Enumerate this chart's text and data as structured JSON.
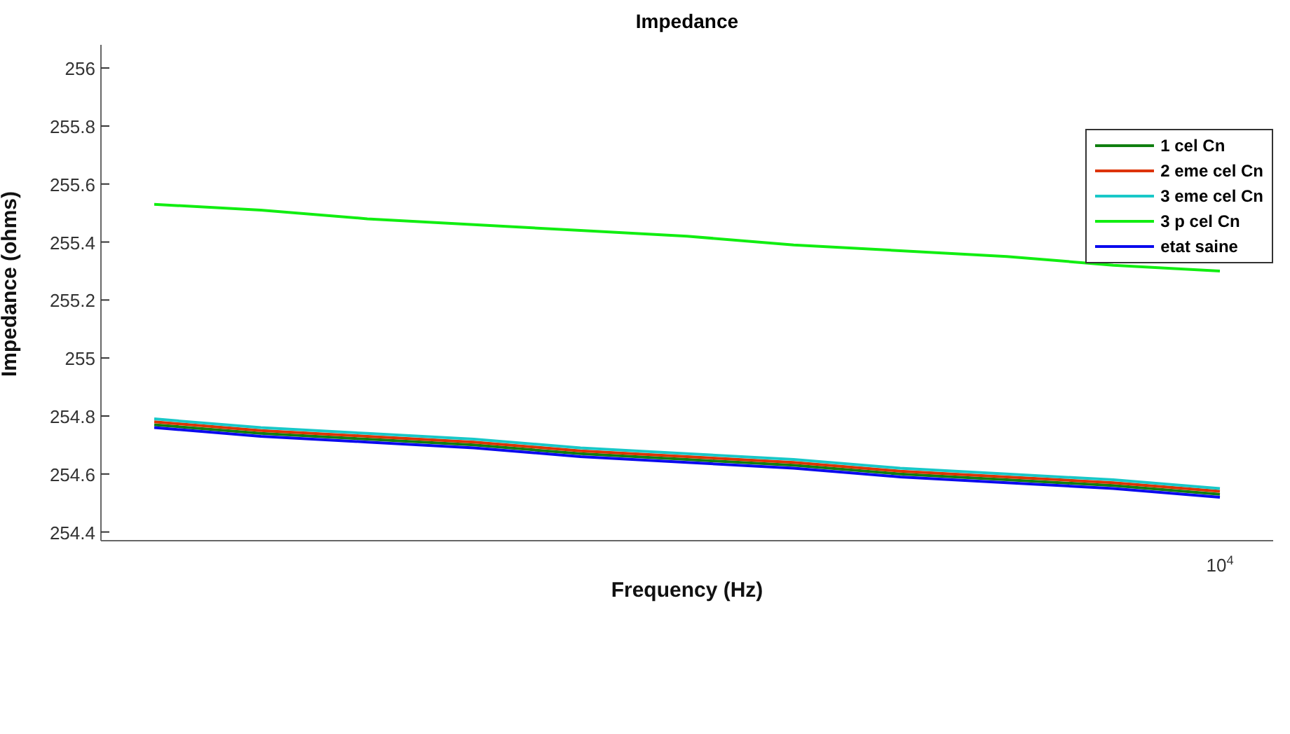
{
  "chart_data": {
    "type": "line",
    "title": "Impedance",
    "xlabel": "Frequency (Hz)",
    "ylabel": "Impedance (ohms)",
    "categories": [
      null,
      null,
      null,
      null,
      null,
      null,
      null,
      null,
      null,
      null,
      "10$^{4}$"
    ],
    "series": [
      {
        "name": "1 cel Cn",
        "color": "#107f10",
        "values": [
          254.77,
          254.74,
          254.72,
          254.7,
          254.67,
          254.65,
          254.63,
          254.6,
          254.58,
          254.56,
          254.53
        ]
      },
      {
        "name": "2 eme cel Cn",
        "color": "#dd3300",
        "values": [
          254.78,
          254.75,
          254.73,
          254.71,
          254.68,
          254.66,
          254.64,
          254.61,
          254.59,
          254.57,
          254.54
        ]
      },
      {
        "name": "3 eme cel Cn",
        "color": "#19c8c8",
        "values": [
          254.79,
          254.76,
          254.74,
          254.72,
          254.69,
          254.67,
          254.65,
          254.62,
          254.6,
          254.58,
          254.55
        ]
      },
      {
        "name": "3 p cel Cn",
        "color": "#11ee11",
        "values": [
          255.53,
          255.51,
          255.48,
          255.46,
          255.44,
          255.42,
          255.39,
          255.37,
          255.35,
          255.32,
          255.3
        ]
      },
      {
        "name": "etat saine",
        "color": "#0a0aee",
        "values": [
          254.76,
          254.73,
          254.71,
          254.69,
          254.66,
          254.64,
          254.62,
          254.59,
          254.57,
          254.55,
          254.52
        ]
      }
    ],
    "ylim": [
      254.37,
      256.08
    ],
    "yticks": [
      254.4,
      254.6,
      254.8,
      255,
      255.2,
      255.4,
      255.6,
      255.8,
      256
    ],
    "grid": false,
    "legend": "top right",
    "marker": "none",
    "line_style": "solid"
  }
}
